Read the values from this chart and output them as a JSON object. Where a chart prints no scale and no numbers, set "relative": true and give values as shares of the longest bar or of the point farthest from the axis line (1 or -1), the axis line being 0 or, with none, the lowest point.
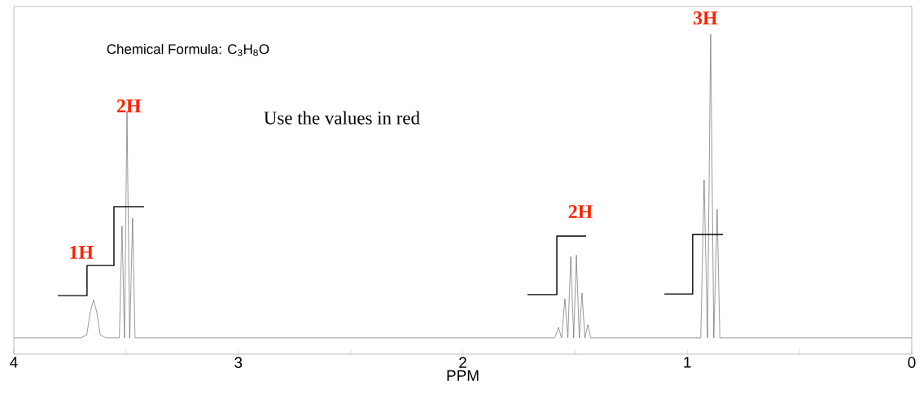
{
  "chart_data": {
    "type": "line",
    "relative": true,
    "xlabel": "PPM",
    "xlim": [
      4,
      0
    ],
    "xticks": [
      4,
      {
        "value": 3.5,
        "label": null
      },
      3,
      {
        "value": 2.5,
        "label": null
      },
      2,
      {
        "value": 1.5,
        "label": null
      },
      1,
      {
        "value": 0.5,
        "label": null
      },
      0
    ],
    "series": [
      {
        "color": "#555555",
        "x": [
          4.0,
          3.7,
          3.675,
          3.66,
          3.645,
          3.63,
          3.615,
          3.59,
          3.53,
          3.518,
          3.507,
          3.496,
          3.484,
          3.471,
          3.46,
          1.59,
          1.574,
          1.56,
          1.545,
          1.532,
          1.519,
          1.506,
          1.494,
          1.481,
          1.469,
          1.456,
          1.443,
          1.43,
          0.94,
          0.925,
          0.91,
          0.896,
          0.882,
          0.867,
          0.855,
          0.0
        ],
        "values": [
          0.051,
          0.051,
          0.06,
          0.13,
          0.17,
          0.13,
          0.06,
          0.051,
          0.051,
          0.4,
          0.051,
          0.756,
          0.051,
          0.425,
          0.051,
          0.051,
          0.084,
          0.051,
          0.173,
          0.051,
          0.305,
          0.051,
          0.31,
          0.051,
          0.191,
          0.051,
          0.092,
          0.051,
          0.051,
          0.545,
          0.051,
          1.0,
          0.051,
          0.453,
          0.051,
          0.051
        ]
      },
      {
        "color": "#000000",
        "x": [
          3.804,
          3.674,
          3.674,
          3.554,
          3.554,
          3.42
        ],
        "values": [
          0.183,
          0.183,
          0.277,
          0.277,
          0.461,
          0.461
        ]
      },
      {
        "color": "#000000",
        "x": [
          1.712,
          1.581,
          1.581,
          1.451
        ],
        "values": [
          0.186,
          0.186,
          0.369,
          0.369
        ]
      },
      {
        "color": "#000000",
        "x": [
          1.102,
          0.976,
          0.976,
          0.841
        ],
        "values": [
          0.188,
          0.188,
          0.374,
          0.374
        ]
      }
    ],
    "annotations": [
      "Chemical Formula: C$_{3}$H$_{8}$O",
      "Use the values in red",
      "1H",
      "2H",
      "2H",
      "3H"
    ]
  }
}
